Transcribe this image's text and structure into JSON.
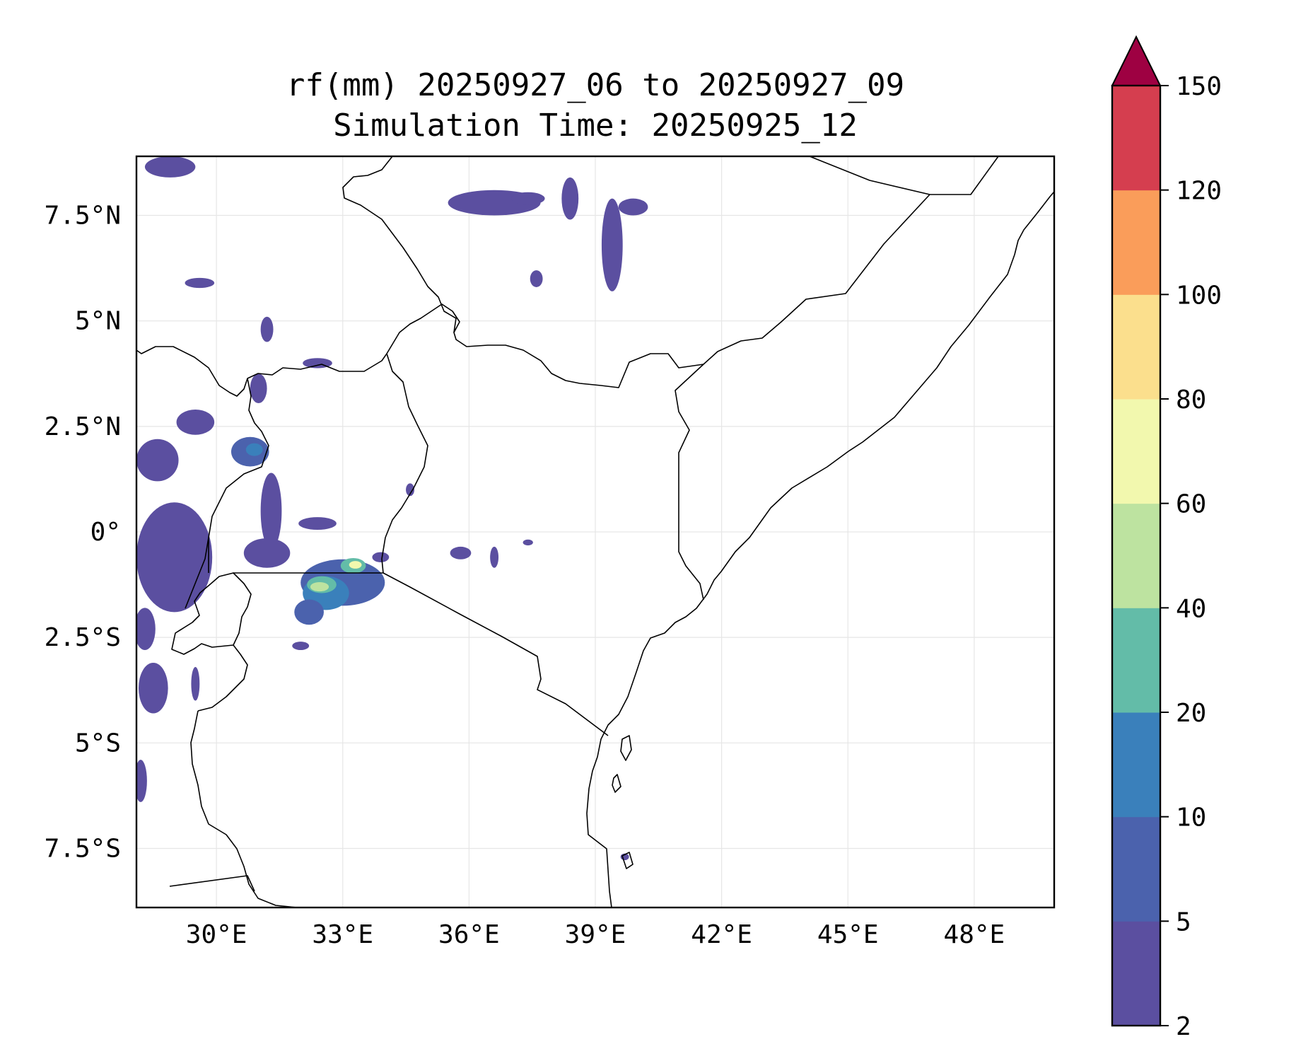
{
  "title": {
    "line1": "rf(mm) 20250927_06 to 20250927_09",
    "line2": "Simulation Time: 20250925_12"
  },
  "map": {
    "lon_range": [
      28.1,
      49.9
    ],
    "lat_range": [
      -8.9,
      8.9
    ],
    "xticks": [
      {
        "value": 30,
        "label": "30°E"
      },
      {
        "value": 33,
        "label": "33°E"
      },
      {
        "value": 36,
        "label": "36°E"
      },
      {
        "value": 39,
        "label": "39°E"
      },
      {
        "value": 42,
        "label": "42°E"
      },
      {
        "value": 45,
        "label": "45°E"
      },
      {
        "value": 48,
        "label": "48°E"
      }
    ],
    "yticks": [
      {
        "value": 7.5,
        "label": "7.5°N"
      },
      {
        "value": 5,
        "label": "5°N"
      },
      {
        "value": 2.5,
        "label": "2.5°N"
      },
      {
        "value": 0,
        "label": "0°"
      },
      {
        "value": -2.5,
        "label": "2.5°S"
      },
      {
        "value": -5,
        "label": "5°S"
      },
      {
        "value": -7.5,
        "label": "7.5°S"
      }
    ],
    "coastline_color": "#000000",
    "grid_color": "#e6e6e6"
  },
  "colorbar": {
    "levels": [
      {
        "label": "2",
        "color": "#5b4fa0"
      },
      {
        "label": "5",
        "color": "#4b62ad"
      },
      {
        "label": "10",
        "color": "#3a80bb"
      },
      {
        "label": "20",
        "color": "#63bca8"
      },
      {
        "label": "40",
        "color": "#bde3a0"
      },
      {
        "label": "60",
        "color": "#f2f8ae"
      },
      {
        "label": "80",
        "color": "#fbdf8d"
      },
      {
        "label": "100",
        "color": "#fa9d5a"
      },
      {
        "label": "120",
        "color": "#d53e4f"
      },
      {
        "label": "150",
        "color": "#9e0142"
      }
    ],
    "extend_color": "#9e0142"
  },
  "rain_cells": [
    {
      "lon": 33.0,
      "lat": -1.2,
      "rx": 1.0,
      "ry": 0.55,
      "level": 1
    },
    {
      "lon": 32.6,
      "lat": -1.45,
      "rx": 0.55,
      "ry": 0.4,
      "level": 2
    },
    {
      "lon": 32.5,
      "lat": -1.25,
      "rx": 0.35,
      "ry": 0.2,
      "level": 3
    },
    {
      "lon": 32.45,
      "lat": -1.3,
      "rx": 0.22,
      "ry": 0.11,
      "level": 4
    },
    {
      "lon": 33.25,
      "lat": -0.8,
      "rx": 0.3,
      "ry": 0.18,
      "level": 3
    },
    {
      "lon": 33.3,
      "lat": -0.78,
      "rx": 0.15,
      "ry": 0.09,
      "level": 5
    },
    {
      "lon": 32.2,
      "lat": -1.9,
      "rx": 0.35,
      "ry": 0.3,
      "level": 1
    },
    {
      "lon": 31.3,
      "lat": 0.5,
      "rx": 0.25,
      "ry": 0.9,
      "level": 0
    },
    {
      "lon": 30.8,
      "lat": 1.9,
      "rx": 0.45,
      "ry": 0.35,
      "level": 1
    },
    {
      "lon": 30.9,
      "lat": 1.95,
      "rx": 0.2,
      "ry": 0.15,
      "level": 2
    },
    {
      "lon": 31.2,
      "lat": -0.5,
      "rx": 0.55,
      "ry": 0.35,
      "level": 0
    },
    {
      "lon": 29.0,
      "lat": -0.6,
      "rx": 0.9,
      "ry": 1.3,
      "level": 0
    },
    {
      "lon": 28.6,
      "lat": 1.7,
      "rx": 0.5,
      "ry": 0.5,
      "level": 0
    },
    {
      "lon": 29.5,
      "lat": 2.6,
      "rx": 0.45,
      "ry": 0.3,
      "level": 0
    },
    {
      "lon": 28.5,
      "lat": -3.7,
      "rx": 0.35,
      "ry": 0.6,
      "level": 0
    },
    {
      "lon": 28.3,
      "lat": -2.3,
      "rx": 0.25,
      "ry": 0.5,
      "level": 0
    },
    {
      "lon": 28.9,
      "lat": 8.65,
      "rx": 0.6,
      "ry": 0.25,
      "level": 0
    },
    {
      "lon": 36.6,
      "lat": 7.8,
      "rx": 1.1,
      "ry": 0.3,
      "level": 0
    },
    {
      "lon": 37.4,
      "lat": 7.9,
      "rx": 0.4,
      "ry": 0.15,
      "level": 0
    },
    {
      "lon": 38.4,
      "lat": 7.9,
      "rx": 0.2,
      "ry": 0.5,
      "level": 0
    },
    {
      "lon": 39.4,
      "lat": 6.8,
      "rx": 0.25,
      "ry": 1.1,
      "level": 0
    },
    {
      "lon": 39.9,
      "lat": 7.7,
      "rx": 0.35,
      "ry": 0.2,
      "level": 0
    },
    {
      "lon": 37.6,
      "lat": 6.0,
      "rx": 0.15,
      "ry": 0.2,
      "level": 0
    },
    {
      "lon": 29.6,
      "lat": 5.9,
      "rx": 0.35,
      "ry": 0.12,
      "level": 0
    },
    {
      "lon": 31.2,
      "lat": 4.8,
      "rx": 0.15,
      "ry": 0.3,
      "level": 0
    },
    {
      "lon": 32.4,
      "lat": 4.0,
      "rx": 0.35,
      "ry": 0.12,
      "level": 0
    },
    {
      "lon": 31.0,
      "lat": 3.4,
      "rx": 0.2,
      "ry": 0.35,
      "level": 0
    },
    {
      "lon": 32.4,
      "lat": 0.2,
      "rx": 0.45,
      "ry": 0.15,
      "level": 0
    },
    {
      "lon": 35.8,
      "lat": -0.5,
      "rx": 0.25,
      "ry": 0.15,
      "level": 0
    },
    {
      "lon": 36.6,
      "lat": -0.6,
      "rx": 0.1,
      "ry": 0.25,
      "level": 0
    },
    {
      "lon": 37.4,
      "lat": -0.25,
      "rx": 0.12,
      "ry": 0.07,
      "level": 0
    },
    {
      "lon": 33.9,
      "lat": -0.6,
      "rx": 0.2,
      "ry": 0.12,
      "level": 0
    },
    {
      "lon": 28.2,
      "lat": -5.9,
      "rx": 0.15,
      "ry": 0.5,
      "level": 0
    },
    {
      "lon": 29.5,
      "lat": -3.6,
      "rx": 0.1,
      "ry": 0.4,
      "level": 0
    },
    {
      "lon": 32.0,
      "lat": -2.7,
      "rx": 0.2,
      "ry": 0.1,
      "level": 0
    },
    {
      "lon": 34.6,
      "lat": 1.0,
      "rx": 0.1,
      "ry": 0.15,
      "level": 0
    },
    {
      "lon": 39.7,
      "lat": -7.7,
      "rx": 0.1,
      "ry": 0.08,
      "level": 0
    }
  ]
}
